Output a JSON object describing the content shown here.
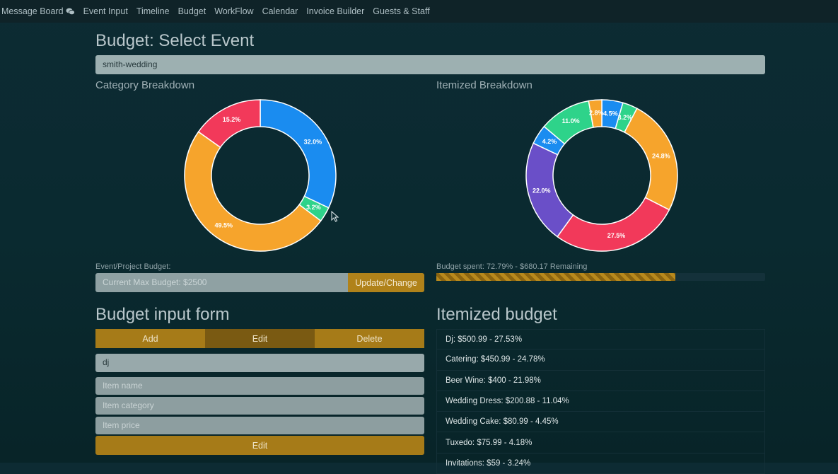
{
  "nav": {
    "items": [
      "Message Board",
      "Event Input",
      "Timeline",
      "Budget",
      "WorkFlow",
      "Calendar",
      "Invoice Builder",
      "Guests & Staff"
    ]
  },
  "page": {
    "title": "Budget: Select Event",
    "selected_event": "smith-wedding"
  },
  "category": {
    "title": "Category Breakdown"
  },
  "itemized": {
    "title": "Itemized Breakdown"
  },
  "budget": {
    "label": "Event/Project Budget:",
    "input_placeholder": "Current Max Budget: $2500",
    "update_button": "Update/Change",
    "spent_text": "Budget spent: 72.79% - $680.17 Remaining",
    "spent_fraction": 0.7279
  },
  "form": {
    "title": "Budget input form",
    "tabs": [
      {
        "label": "Add",
        "active": false
      },
      {
        "label": "Edit",
        "active": true
      },
      {
        "label": "Delete",
        "active": false
      }
    ],
    "selected_item": "dj",
    "name_placeholder": "Item name",
    "category_placeholder": "Item category",
    "price_placeholder": "Item price",
    "submit_label": "Edit"
  },
  "itemized_budget": {
    "title": "Itemized budget",
    "items": [
      "Dj: $500.99 - 27.53%",
      "Catering: $450.99 - 24.78%",
      "Beer Wine: $400 - 21.98%",
      "Wedding Dress: $200.88 - 11.04%",
      "Wedding Cake: $80.99 - 4.45%",
      "Tuxedo: $75.99 - 4.18%",
      "Invitations: $59 - 3.24%"
    ]
  },
  "chart_data": [
    {
      "type": "pie",
      "title": "Category Breakdown",
      "values": [
        32.0,
        3.2,
        49.5,
        15.2
      ],
      "labels": [
        "32.0%",
        "3.2%",
        "49.5%",
        "15.2%"
      ],
      "colors": [
        "#1a8cf0",
        "#2ed38a",
        "#f6a42c",
        "#f2395a"
      ]
    },
    {
      "type": "pie",
      "title": "Itemized Breakdown",
      "values": [
        4.5,
        3.2,
        24.8,
        27.5,
        22.0,
        4.2,
        11.0,
        2.8
      ],
      "labels": [
        "4.5%",
        "3.2%",
        "24.8%",
        "27.5%",
        "22.0%",
        "4.2%",
        "11.0%",
        "2.8%"
      ],
      "colors": [
        "#1a8cf0",
        "#2ed38a",
        "#f6a42c",
        "#f2395a",
        "#6a4fc8",
        "#1a8cf0",
        "#2ed38a",
        "#f6a42c"
      ]
    }
  ],
  "colors": {
    "accent": "#a67b18",
    "accent_active": "#7a5a12"
  }
}
